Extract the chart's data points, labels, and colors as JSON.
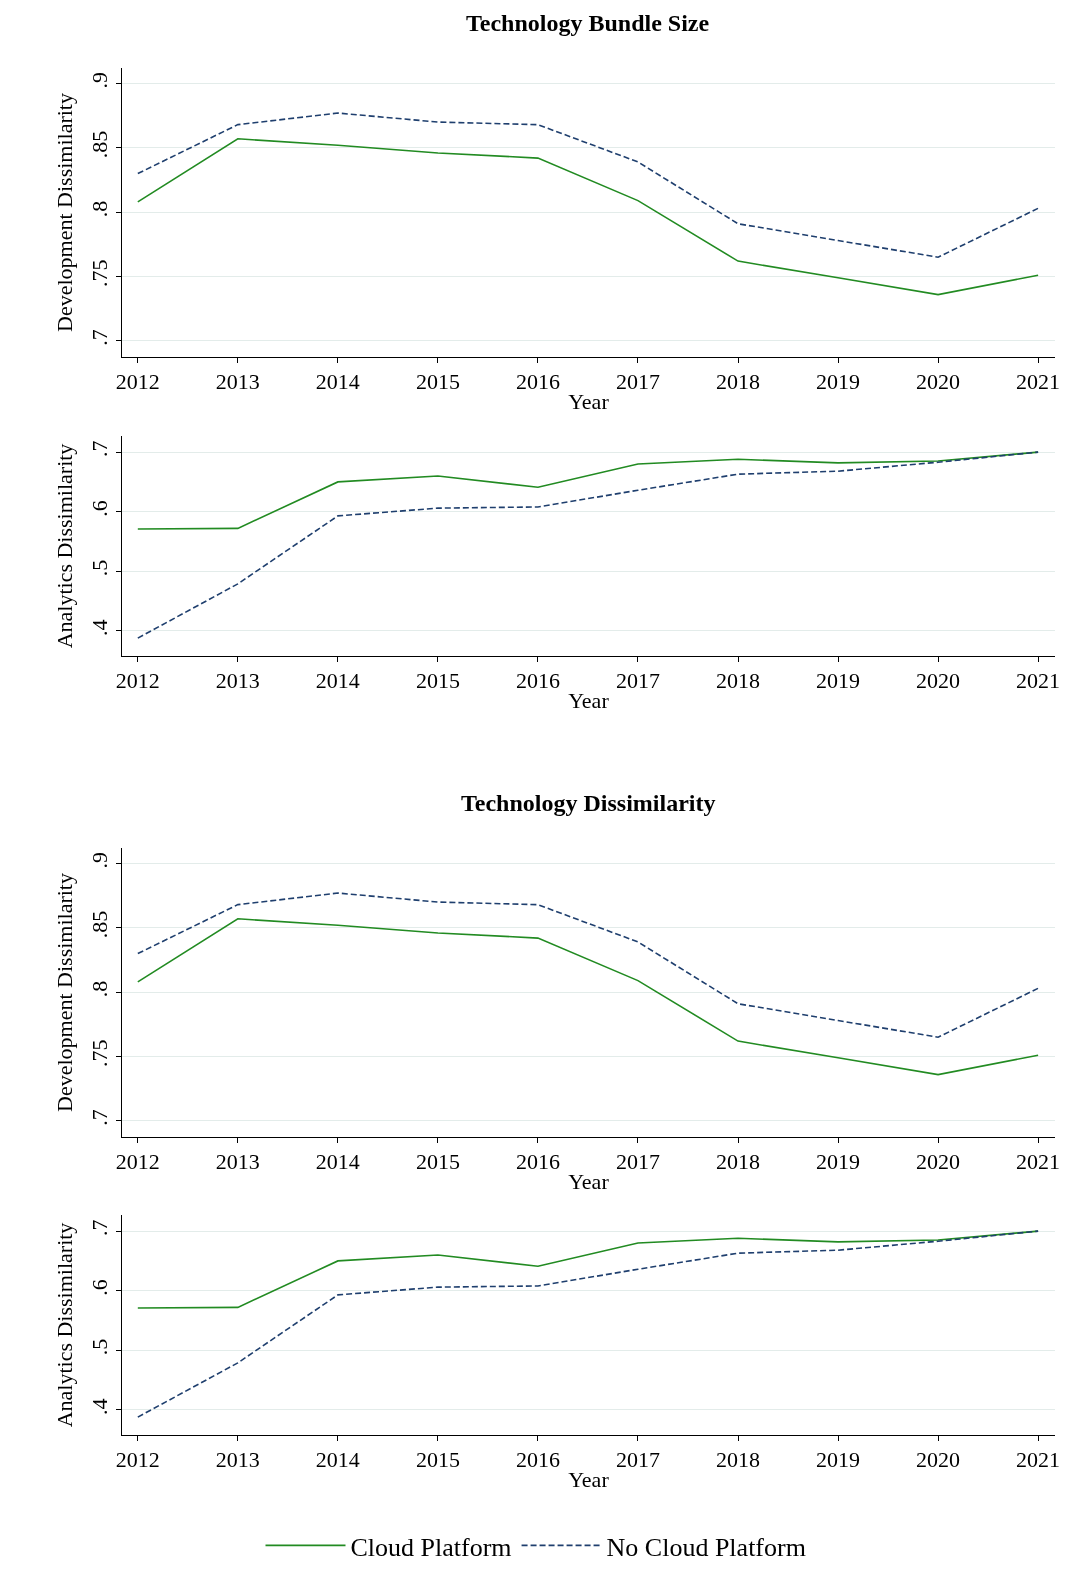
{
  "chart_data": [
    {
      "type": "line",
      "title": "Technology Bundle Size",
      "xlabel": "Year",
      "ylabel": "Development Dissimilarity",
      "x": [
        2012,
        2013,
        2014,
        2015,
        2016,
        2017,
        2018,
        2019,
        2020,
        2021
      ],
      "series": [
        {
          "name": "Cloud Platform",
          "color": "#228b22",
          "line_style": "solid",
          "values": [
            0.808,
            0.857,
            0.852,
            0.846,
            0.842,
            0.809,
            0.762,
            0.749,
            0.736,
            0.751
          ]
        },
        {
          "name": "No Cloud Platform",
          "color": "#1f3f6e",
          "line_style": "dashed",
          "values": [
            0.83,
            0.868,
            0.877,
            0.87,
            0.868,
            0.839,
            0.791,
            0.778,
            0.765,
            0.803
          ]
        }
      ],
      "xlim": [
        2011.84,
        2021.17
      ],
      "xticks": [
        2012,
        2013,
        2014,
        2015,
        2016,
        2017,
        2018,
        2019,
        2020,
        2021
      ],
      "ylim": [
        0.6875,
        0.912
      ],
      "yticks": [
        {
          "value": 0.7,
          "label": ".7"
        },
        {
          "value": 0.75,
          "label": ".75"
        },
        {
          "value": 0.8,
          "label": ".8"
        },
        {
          "value": 0.85,
          "label": ".85"
        },
        {
          "value": 0.9,
          "label": ".9"
        }
      ],
      "grid": "y",
      "marker": "none",
      "legend": "bottom"
    },
    {
      "type": "line",
      "xlabel": "Year",
      "ylabel": "Analytics Dissimilarity",
      "x": [
        2012,
        2013,
        2014,
        2015,
        2016,
        2017,
        2018,
        2019,
        2020,
        2021
      ],
      "series": [
        {
          "color": "#228b22",
          "line_style": "solid",
          "values": [
            0.571,
            0.572,
            0.65,
            0.66,
            0.641,
            0.68,
            0.688,
            0.682,
            0.685,
            0.7
          ]
        },
        {
          "color": "#1f3f6e",
          "line_style": "dashed",
          "values": [
            0.388,
            0.479,
            0.593,
            0.606,
            0.608,
            0.636,
            0.663,
            0.668,
            0.683,
            0.7
          ]
        }
      ],
      "xlim": [
        2011.84,
        2021.17
      ],
      "xticks": [
        2012,
        2013,
        2014,
        2015,
        2016,
        2017,
        2018,
        2019,
        2020,
        2021
      ],
      "ylim": [
        0.358,
        0.727
      ],
      "yticks": [
        {
          "value": 0.4,
          "label": ".4"
        },
        {
          "value": 0.5,
          "label": ".5"
        },
        {
          "value": 0.6,
          "label": ".6"
        },
        {
          "value": 0.7,
          "label": ".7"
        }
      ],
      "grid": "y",
      "marker": "none"
    },
    {
      "type": "line",
      "title": "Technology Dissimilarity",
      "xlabel": "Year",
      "ylabel": "Development Dissimilarity",
      "x": [
        2012,
        2013,
        2014,
        2015,
        2016,
        2017,
        2018,
        2019,
        2020,
        2021
      ],
      "series": [
        {
          "color": "#228b22",
          "line_style": "solid",
          "values": [
            0.808,
            0.857,
            0.852,
            0.846,
            0.842,
            0.809,
            0.762,
            0.749,
            0.736,
            0.751
          ]
        },
        {
          "color": "#1f3f6e",
          "line_style": "dashed",
          "values": [
            0.83,
            0.868,
            0.877,
            0.87,
            0.868,
            0.839,
            0.791,
            0.778,
            0.765,
            0.803
          ]
        }
      ],
      "xlim": [
        2011.84,
        2021.17
      ],
      "xticks": [
        2012,
        2013,
        2014,
        2015,
        2016,
        2017,
        2018,
        2019,
        2020,
        2021
      ],
      "ylim": [
        0.6875,
        0.912
      ],
      "yticks": [
        {
          "value": 0.7,
          "label": ".7"
        },
        {
          "value": 0.75,
          "label": ".75"
        },
        {
          "value": 0.8,
          "label": ".8"
        },
        {
          "value": 0.85,
          "label": ".85"
        },
        {
          "value": 0.9,
          "label": ".9"
        }
      ],
      "grid": "y",
      "marker": "none"
    },
    {
      "type": "line",
      "xlabel": "Year",
      "ylabel": "Analytics Dissimilarity",
      "x": [
        2012,
        2013,
        2014,
        2015,
        2016,
        2017,
        2018,
        2019,
        2020,
        2021
      ],
      "series": [
        {
          "color": "#228b22",
          "line_style": "solid",
          "values": [
            0.571,
            0.572,
            0.65,
            0.66,
            0.641,
            0.68,
            0.688,
            0.682,
            0.685,
            0.7
          ]
        },
        {
          "color": "#1f3f6e",
          "line_style": "dashed",
          "values": [
            0.388,
            0.479,
            0.593,
            0.606,
            0.608,
            0.636,
            0.663,
            0.668,
            0.683,
            0.7
          ]
        }
      ],
      "xlim": [
        2011.84,
        2021.17
      ],
      "xticks": [
        2012,
        2013,
        2014,
        2015,
        2016,
        2017,
        2018,
        2019,
        2020,
        2021
      ],
      "ylim": [
        0.358,
        0.727
      ],
      "yticks": [
        {
          "value": 0.4,
          "label": ".4"
        },
        {
          "value": 0.5,
          "label": ".5"
        },
        {
          "value": 0.6,
          "label": ".6"
        },
        {
          "value": 0.7,
          "label": ".7"
        }
      ],
      "grid": "y",
      "marker": "none"
    }
  ]
}
